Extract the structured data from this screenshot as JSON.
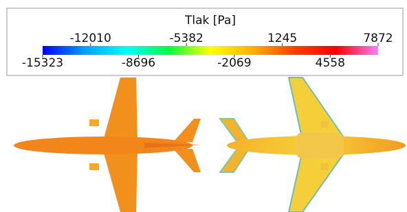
{
  "chart_data": {
    "type": "colorbar",
    "title": "Tlak [Pa]",
    "clim": [
      -15323,
      7872
    ],
    "ticks": [
      -15323,
      -12010,
      -8696,
      -5382,
      -2069,
      1245,
      4558,
      7872
    ],
    "colors": [
      "#0000ff",
      "#00a0ff",
      "#00ffff",
      "#00ff40",
      "#ffff00",
      "#ffb000",
      "#ff4000",
      "#ff0000",
      "#ff80ff"
    ]
  }
}
